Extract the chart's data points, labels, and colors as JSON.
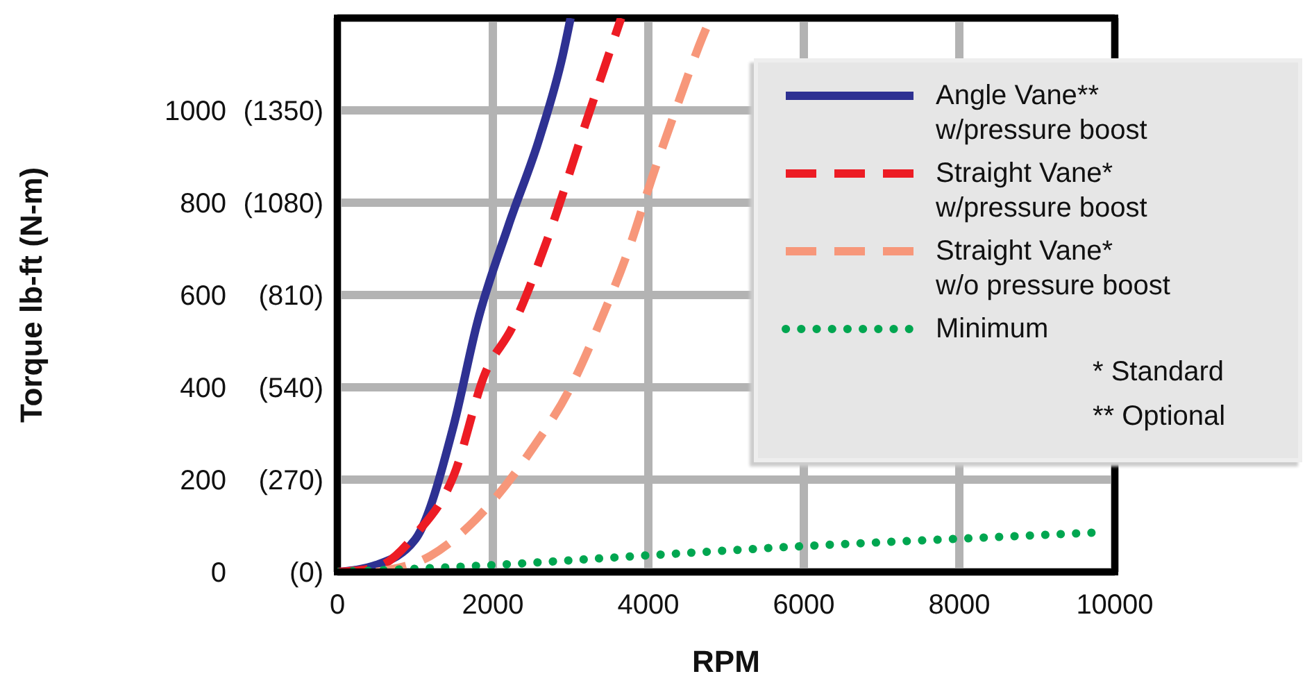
{
  "chart_data": {
    "type": "line",
    "xlabel": "RPM",
    "ylabel": "Torque lb-ft (N-m)",
    "xlim": [
      0,
      10000
    ],
    "xticks": [
      0,
      2000,
      4000,
      6000,
      8000,
      10000
    ],
    "ylim": [
      0,
      1200
    ],
    "yticks": [
      0,
      200,
      400,
      600,
      800,
      1000
    ],
    "y2lim": [
      0,
      1620
    ],
    "y2ticks": [
      {
        "value": 0,
        "label": "(0)"
      },
      {
        "value": 270,
        "label": "(270)"
      },
      {
        "value": 540,
        "label": "(540)"
      },
      {
        "value": 810,
        "label": "(810)"
      },
      {
        "value": 1080,
        "label": "(1080)"
      },
      {
        "value": 1350,
        "label": "(1350)"
      }
    ],
    "grid": true,
    "legend": "top right",
    "marker": "none",
    "annotations": [
      "* Standard",
      "** Optional"
    ],
    "series": [
      {
        "name": "Angle Vane**\nw/pressure boost",
        "color": "#2e3192",
        "line_style": "solid",
        "x": [
          0,
          500,
          1000,
          1500,
          1800,
          2200,
          2600,
          2900,
          3000
        ],
        "values": [
          0,
          15,
          70,
          320,
          540,
          750,
          940,
          1120,
          1200
        ]
      },
      {
        "name": "Straight Vane*\nw/pressure boost",
        "color": "#ed1c24",
        "line_style": "dashed",
        "x": [
          0,
          500,
          1000,
          1500,
          1900,
          2250,
          2700,
          3200,
          3650
        ],
        "values": [
          0,
          10,
          80,
          210,
          430,
          530,
          720,
          975,
          1200
        ]
      },
      {
        "name": "Straight Vane*\nw/o pressure boost",
        "color": "#f7977a",
        "line_style": "dashed",
        "x": [
          500,
          1200,
          1900,
          2500,
          3000,
          3400,
          3750,
          4050,
          4350,
          4700,
          4800
        ],
        "values": [
          0,
          35,
          135,
          265,
          400,
          550,
          700,
          855,
          1000,
          1160,
          1200
        ]
      },
      {
        "name": "Minimum",
        "color": "#00a650",
        "line_style": "dotted",
        "x": [
          0,
          2000,
          4000,
          6000,
          8000,
          9700
        ],
        "values": [
          0,
          15,
          36,
          56,
          72,
          85
        ]
      }
    ]
  }
}
